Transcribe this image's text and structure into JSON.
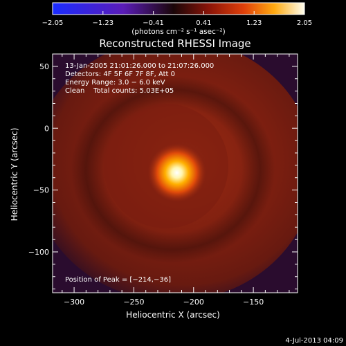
{
  "chart_data": {
    "type": "heatmap",
    "title": "Reconstructed RHESSI Image",
    "xlabel": "Heliocentric X (arcsec)",
    "ylabel": "Heliocentric Y (arcsec)",
    "xlim": [
      -318,
      -113
    ],
    "ylim": [
      -133,
      60
    ],
    "x_ticks": [
      -300,
      -250,
      -200,
      -150
    ],
    "x_tick_labels": [
      "−300",
      "−250",
      "−200",
      "−150"
    ],
    "y_ticks": [
      50,
      0,
      -50,
      -100
    ],
    "y_tick_labels": [
      "50",
      "0",
      "−50",
      "−100"
    ],
    "colorbar": {
      "min": -2.05,
      "max": 2.05,
      "ticks": [
        -2.05,
        -1.23,
        -0.41,
        0.41,
        1.23,
        2.05
      ],
      "tick_labels": [
        "−2.05",
        "−1.23",
        "−0.41",
        "0.41",
        "1.23",
        "2.05"
      ],
      "unit_label": "(photons cm⁻² s⁻¹ asec⁻²)"
    },
    "info_lines": [
      "13-Jan-2005 21:01:26.000 to 21:07:26.000",
      "Detectors: 4F 5F 6F 7F 8F, Att 0",
      "Energy Range: 3.0 − 6.0 keV",
      "Clean    Total counts: 5.03E+05"
    ],
    "peak_label": "Position of Peak = [−214,−36]",
    "peak": {
      "x": -214,
      "y": -36
    },
    "footer_date": "4-Jul-2013 04:09"
  }
}
